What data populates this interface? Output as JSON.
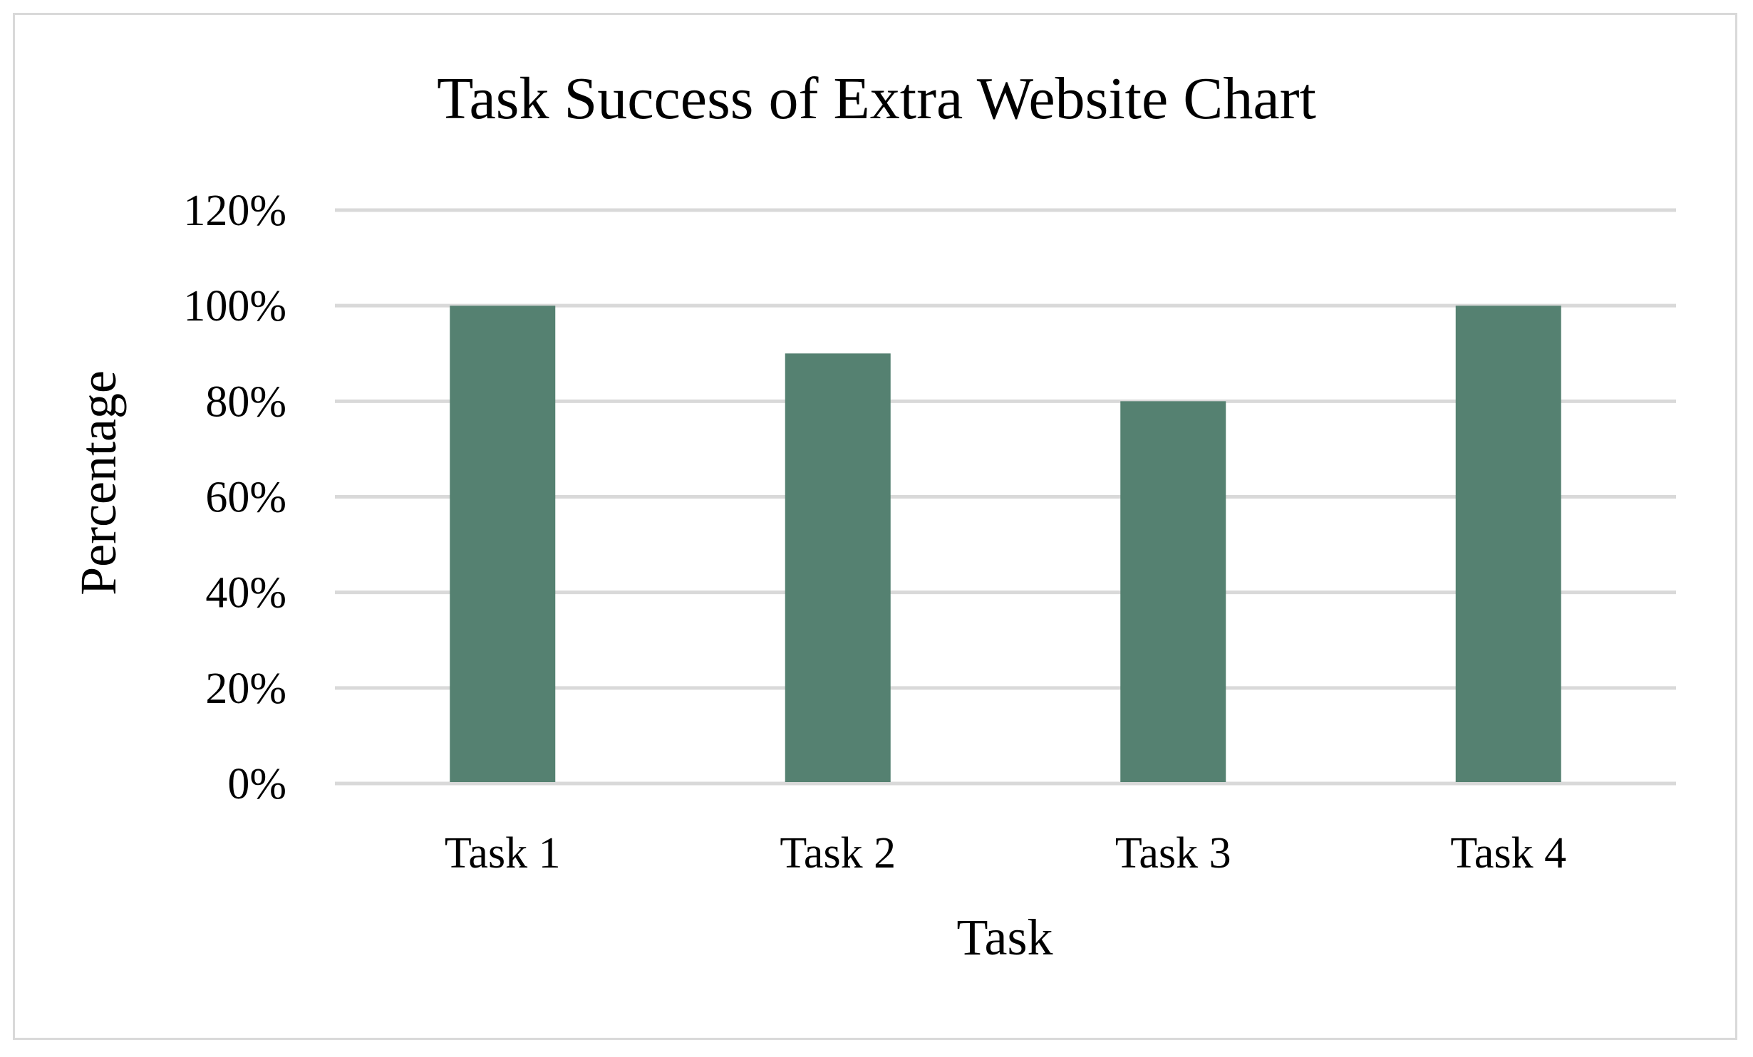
{
  "chart_data": {
    "type": "bar",
    "title": "Task Success of Extra Website Chart",
    "xlabel": "Task",
    "ylabel": "Percentage",
    "categories": [
      "Task 1",
      "Task 2",
      "Task 3",
      "Task 4"
    ],
    "values": [
      100,
      90,
      80,
      100
    ],
    "ylim": [
      0,
      120
    ],
    "yticks": [
      0,
      20,
      40,
      60,
      80,
      100,
      120
    ],
    "ytick_labels": [
      "0%",
      "20%",
      "40%",
      "60%",
      "80%",
      "100%",
      "120%"
    ],
    "grid": true,
    "legend": "none",
    "colors": {
      "bar": "#558171",
      "grid": "#d9d9d9",
      "frame": "#d9d9d9"
    }
  }
}
